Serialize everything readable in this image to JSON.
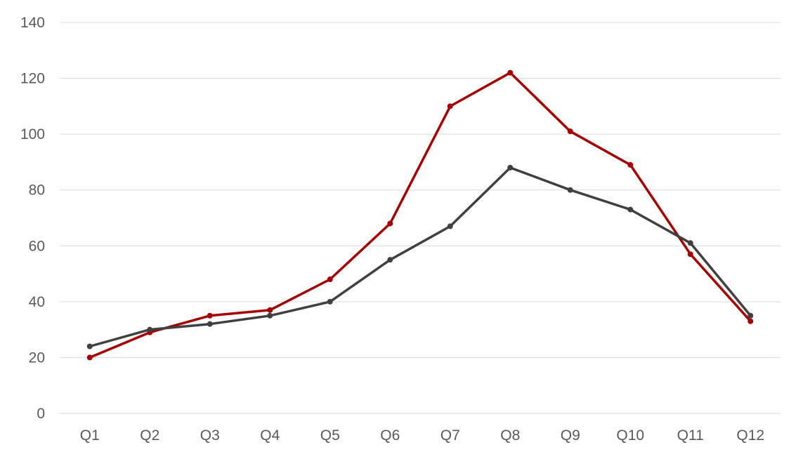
{
  "chart_data": {
    "type": "line",
    "categories": [
      "Q1",
      "Q2",
      "Q3",
      "Q4",
      "Q5",
      "Q6",
      "Q7",
      "Q8",
      "Q9",
      "Q10",
      "Q11",
      "Q12"
    ],
    "series": [
      {
        "color": "#a50000",
        "values": [
          20,
          29,
          35,
          37,
          48,
          68,
          110,
          122,
          101,
          89,
          57,
          33
        ]
      },
      {
        "color": "#404040",
        "values": [
          24,
          30,
          32,
          35,
          40,
          55,
          67,
          88,
          80,
          73,
          61,
          35
        ]
      }
    ],
    "title": "",
    "xlabel": "",
    "ylabel": "",
    "ylim": [
      0,
      140
    ],
    "yticks": [
      "0",
      "20",
      "40",
      "60",
      "80",
      "100",
      "120",
      "140"
    ],
    "grid": true,
    "legend": "none"
  }
}
